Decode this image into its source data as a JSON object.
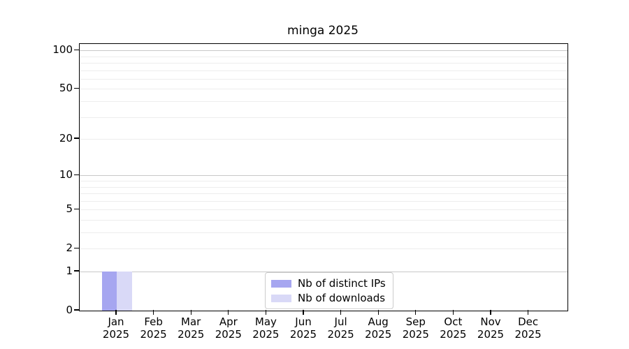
{
  "chart_data": {
    "type": "bar",
    "title": "minga 2025",
    "categories": [
      "Jan 2025",
      "Feb 2025",
      "Mar 2025",
      "Apr 2025",
      "May 2025",
      "Jun 2025",
      "Jul 2025",
      "Aug 2025",
      "Sep 2025",
      "Oct 2025",
      "Nov 2025",
      "Dec 2025"
    ],
    "series": [
      {
        "name": "Nb of distinct IPs",
        "color": "#a6a6f0",
        "values": [
          1,
          0,
          0,
          0,
          0,
          0,
          0,
          0,
          0,
          0,
          0,
          0
        ]
      },
      {
        "name": "Nb of downloads",
        "color": "#d9d9f7",
        "values": [
          1,
          0,
          0,
          0,
          0,
          0,
          0,
          0,
          0,
          0,
          0,
          0
        ]
      }
    ],
    "xlabel": "",
    "ylabel": "",
    "yaxis": {
      "scale": "log1p",
      "ticks": [
        0,
        1,
        2,
        5,
        10,
        20,
        50,
        100
      ],
      "ylim": [
        0,
        112
      ],
      "major_gridlines": [
        1,
        10,
        100
      ],
      "minor_gridlines": [
        2,
        3,
        4,
        5,
        6,
        7,
        8,
        9,
        20,
        30,
        40,
        50,
        60,
        70,
        80,
        90
      ],
      "major_grid_color": "#c8c8c8",
      "minor_grid_color": "#ededed"
    },
    "grid": true,
    "legend_position": "lower center"
  }
}
